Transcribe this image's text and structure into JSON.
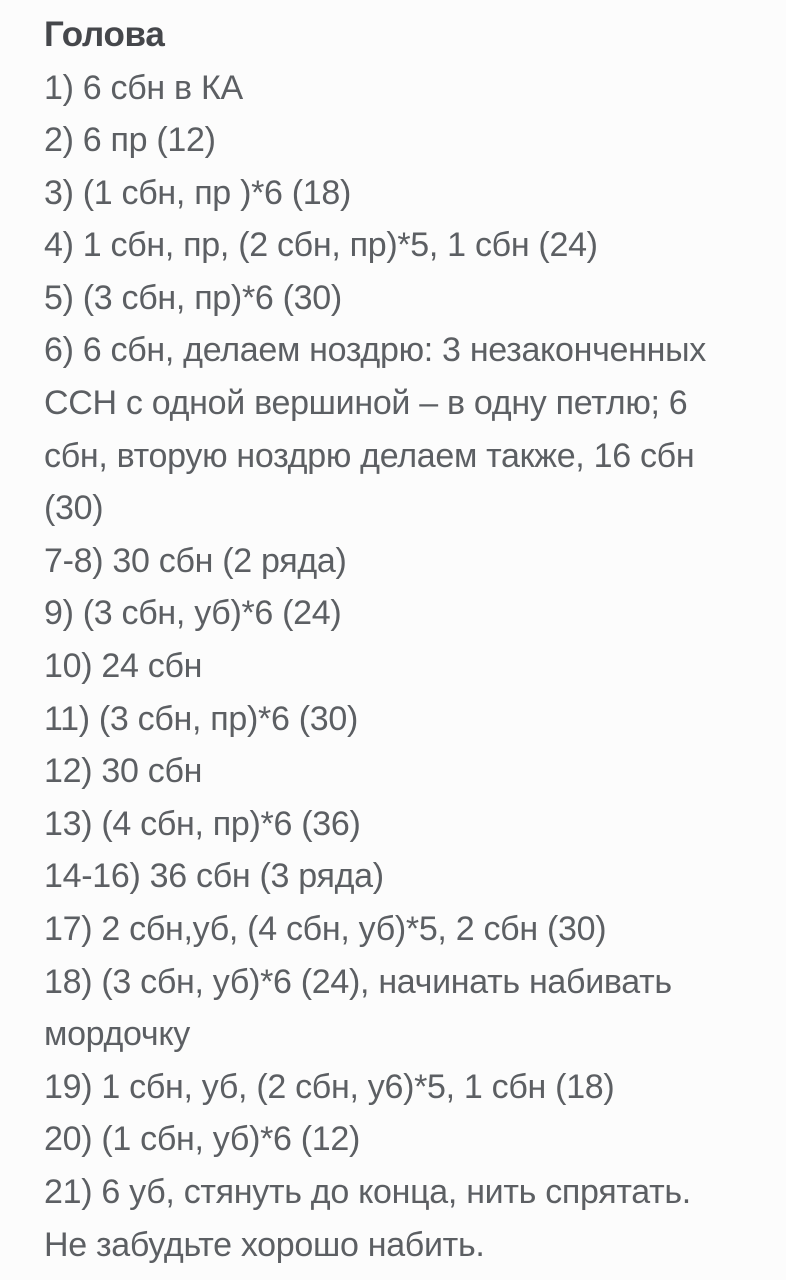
{
  "colors": {
    "background": "#fcfcfc",
    "body_text": "#5c5f63",
    "title_text": "#45474b"
  },
  "document": {
    "section_title": "Голова",
    "lines": [
      "1) 6 сбн в КА",
      "2) 6 пр (12)",
      "3) (1 сбн, пр )*6 (18)",
      "4) 1 сбн, пр, (2 сбн, пр)*5, 1 сбн (24)",
      "5) (3 сбн, пр)*6 (30)",
      "6) 6 сбн, делаем ноздрю: 3 незаконченных\nССН с одной вершиной – в одну петлю; 6\nсбн, вторую ноздрю делаем также, 16 сбн\n(30)",
      "7-8) 30 сбн (2 ряда)",
      "9) (3 сбн, уб)*6 (24)",
      "10) 24 сбн",
      "11) (3 сбн, пр)*6 (30)",
      "12) 30 сбн",
      "13) (4 сбн, пр)*6 (36)",
      "14-16) 36 сбн (3 ряда)",
      "17) 2 сбн,уб, (4 сбн, уб)*5, 2 сбн (30)",
      "18) (3 сбн, уб)*6 (24), начинать набивать\nмордочку",
      "19) 1 сбн, уб, (2 сбн, у6)*5, 1 сбн (18)",
      "20) (1 сбн, уб)*6 (12)",
      "21) 6 уб, стянуть до конца, нить спрятать.\nНе забудьте хорошо набить."
    ]
  }
}
